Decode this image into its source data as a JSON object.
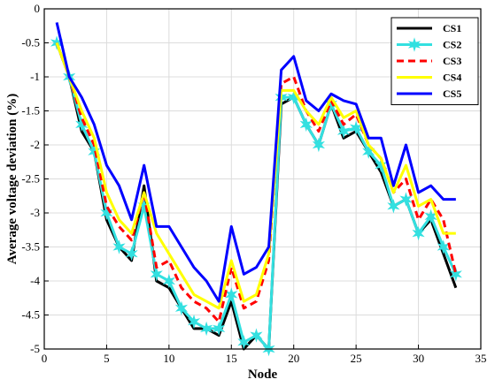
{
  "chart_data": {
    "type": "line",
    "xlabel": "Node",
    "ylabel": "Average voltage deviation (%)",
    "xlim": [
      0,
      35
    ],
    "ylim": [
      -5,
      0
    ],
    "xticks": [
      0,
      5,
      10,
      15,
      20,
      25,
      30,
      35
    ],
    "yticks": [
      0,
      -0.5,
      -1,
      -1.5,
      -2,
      -2.5,
      -3,
      -3.5,
      -4,
      -4.5,
      -5
    ],
    "grid": true,
    "legend_position": "top-right",
    "x": [
      1,
      2,
      3,
      4,
      5,
      6,
      7,
      8,
      9,
      10,
      11,
      12,
      13,
      14,
      15,
      16,
      17,
      18,
      19,
      20,
      21,
      22,
      23,
      24,
      25,
      26,
      27,
      28,
      29,
      30,
      31,
      32,
      33
    ],
    "series": [
      {
        "name": "CS1",
        "color": "#000000",
        "style": "solid",
        "marker": "none",
        "values": [
          -0.5,
          -1.0,
          -1.8,
          -2.1,
          -3.1,
          -3.5,
          -3.7,
          -2.6,
          -4.0,
          -4.1,
          -4.4,
          -4.7,
          -4.7,
          -4.8,
          -4.3,
          -5.0,
          -4.8,
          -5.0,
          -1.4,
          -1.3,
          -1.7,
          -2.0,
          -1.4,
          -1.9,
          -1.8,
          -2.1,
          -2.4,
          -2.9,
          -2.8,
          -3.3,
          -3.1,
          -3.6,
          -4.1
        ]
      },
      {
        "name": "CS2",
        "color": "#33e0e0",
        "style": "solid",
        "marker": "star",
        "values": [
          -0.5,
          -1.0,
          -1.7,
          -2.1,
          -3.0,
          -3.5,
          -3.6,
          -2.9,
          -3.9,
          -4.0,
          -4.4,
          -4.6,
          -4.7,
          -4.7,
          -4.2,
          -4.9,
          -4.8,
          -5.0,
          -1.3,
          -1.3,
          -1.7,
          -2.0,
          -1.4,
          -1.8,
          -1.75,
          -2.1,
          -2.3,
          -2.9,
          -2.8,
          -3.3,
          -3.05,
          -3.5,
          -3.9
        ]
      },
      {
        "name": "CS3",
        "color": "#ff0000",
        "style": "dashed",
        "marker": "none",
        "values": [
          -0.5,
          -1.0,
          -1.6,
          -2.0,
          -2.9,
          -3.2,
          -3.4,
          -2.7,
          -3.8,
          -3.7,
          -4.1,
          -4.3,
          -4.4,
          -4.6,
          -3.8,
          -4.4,
          -4.3,
          -3.7,
          -1.1,
          -1.0,
          -1.5,
          -1.8,
          -1.35,
          -1.7,
          -1.55,
          -2.0,
          -2.2,
          -2.7,
          -2.5,
          -3.1,
          -2.8,
          -3.1,
          -3.9
        ]
      },
      {
        "name": "CS4",
        "color": "#ffff00",
        "style": "solid",
        "marker": "none",
        "values": [
          -0.5,
          -1.0,
          -1.5,
          -1.9,
          -2.7,
          -3.1,
          -3.3,
          -2.7,
          -3.3,
          -3.6,
          -3.9,
          -4.2,
          -4.3,
          -4.4,
          -3.7,
          -4.3,
          -4.2,
          -3.6,
          -1.2,
          -1.2,
          -1.5,
          -1.7,
          -1.3,
          -1.6,
          -1.5,
          -2.0,
          -2.2,
          -2.7,
          -2.3,
          -2.9,
          -2.8,
          -3.3,
          -3.3
        ]
      },
      {
        "name": "CS5",
        "color": "#0000ff",
        "style": "solid",
        "marker": "none",
        "values": [
          -0.2,
          -1.0,
          -1.3,
          -1.7,
          -2.3,
          -2.6,
          -3.1,
          -2.3,
          -3.2,
          -3.2,
          -3.5,
          -3.8,
          -4.0,
          -4.3,
          -3.2,
          -3.9,
          -3.8,
          -3.5,
          -0.9,
          -0.7,
          -1.35,
          -1.5,
          -1.25,
          -1.35,
          -1.4,
          -1.9,
          -1.9,
          -2.6,
          -2.0,
          -2.7,
          -2.6,
          -2.8,
          -2.8
        ]
      }
    ]
  }
}
